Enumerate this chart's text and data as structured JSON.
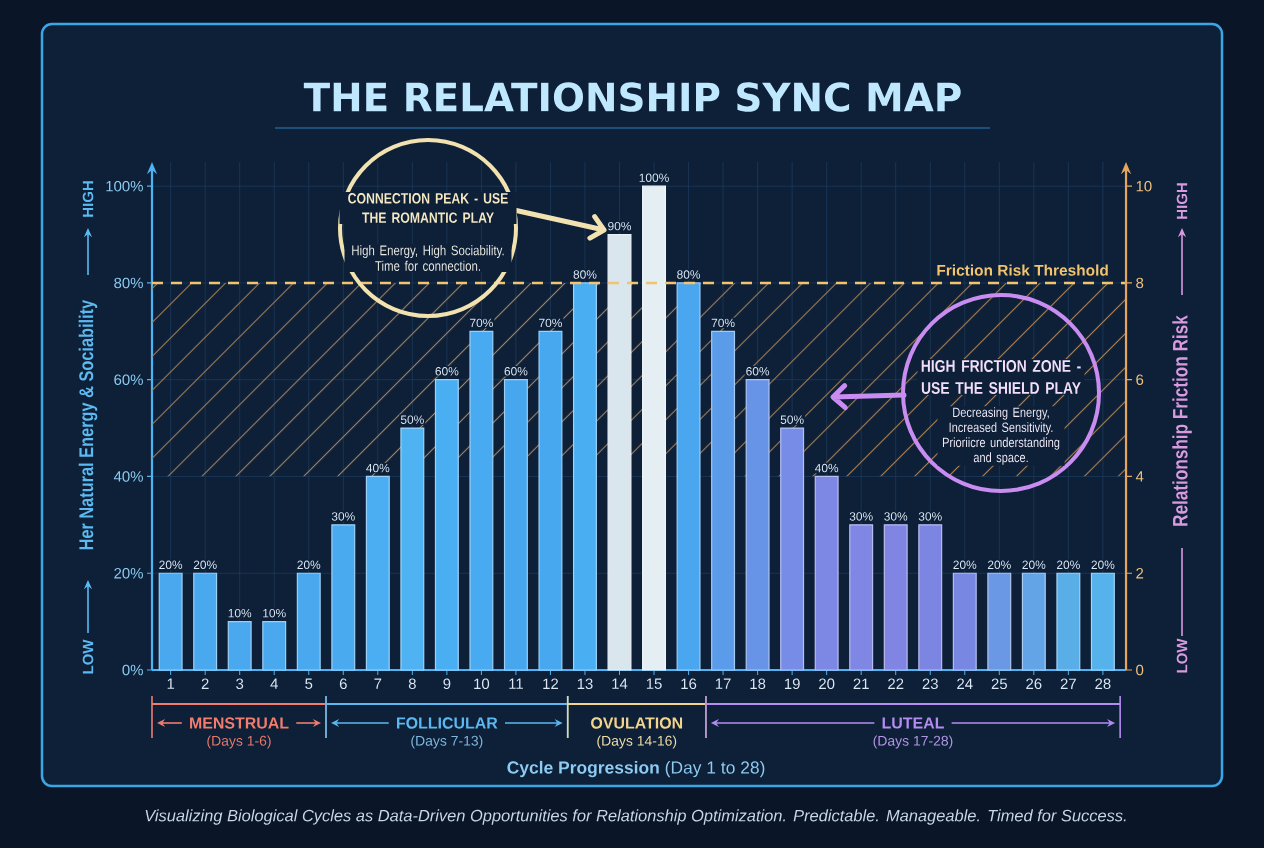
{
  "chart_data": {
    "type": "bar",
    "title": "THE RELATIONSHIP SYNC MAP",
    "xlabel": "**Cycle Progression** (Day 1 to 28)",
    "ylabel": "Her Natural Energy & Sociability",
    "y2label": "Relationship Friction Risk",
    "categories": [
      "1",
      "2",
      "3",
      "4",
      "5",
      "6",
      "7",
      "8",
      "9",
      "10",
      "11",
      "12",
      "13",
      "14",
      "15",
      "16",
      "17",
      "18",
      "19",
      "20",
      "21",
      "22",
      "23",
      "24",
      "25",
      "26",
      "27",
      "28"
    ],
    "values": [
      20,
      20,
      10,
      10,
      20,
      30,
      40,
      50,
      60,
      70,
      60,
      70,
      80,
      90,
      100,
      80,
      70,
      60,
      50,
      40,
      30,
      30,
      30,
      20,
      20,
      20,
      20,
      20
    ],
    "colors": [
      "#4aa8ee",
      "#4aa8ee",
      "#4aa8ee",
      "#4aa8ee",
      "#4aa8ee",
      "#4aaaf0",
      "#4caef2",
      "#4eb2f3",
      "#4aaef2",
      "#48aaf0",
      "#46a6ee",
      "#48a8ef",
      "#4aaef2",
      "#d9e6ee",
      "#e4eef3",
      "#4aa6ee",
      "#5a9cea",
      "#6894e8",
      "#768ce6",
      "#7c88e4",
      "#8086e4",
      "#8084e2",
      "#7c86e2",
      "#7888e2",
      "#6a98e4",
      "#62a4e6",
      "#5aaee8",
      "#56b2ea"
    ],
    "value_labels": [
      "20%",
      "20%",
      "10%",
      "10%",
      "20%",
      "30%",
      "40%",
      "50%",
      "60%",
      "70%",
      "60%",
      "70%",
      "80%",
      "90%",
      "100%",
      "80%",
      "70%",
      "60%",
      "50%",
      "40%",
      "30%",
      "30%",
      "30%",
      "20%",
      "20%",
      "20%",
      "20%",
      "20%"
    ],
    "ylim": [
      0,
      105
    ],
    "yticks": [
      {
        "value": 0,
        "label": "0%"
      },
      {
        "value": 20,
        "label": "20%"
      },
      {
        "value": 40,
        "label": "40%"
      },
      {
        "value": 60,
        "label": "60%"
      },
      {
        "value": 80,
        "label": "80%"
      },
      {
        "value": 100,
        "label": "100%"
      }
    ],
    "y2lim": [
      0,
      10.5
    ],
    "y2ticks": [
      0,
      2,
      4,
      6,
      8,
      10
    ],
    "grid": true,
    "ref_lines": [
      {
        "axis": "y",
        "value": 80,
        "label": "Friction Risk Threshold",
        "color": "#f2c46e",
        "line_style": "dashed"
      }
    ],
    "bands": [
      {
        "axis": "y",
        "from": 40,
        "to": 80,
        "color": "#d8a060"
      }
    ],
    "annotations": [
      "CONNECTION PEAK - USE THE ROMANTIC PLAY",
      "High Energy, High Sociability. Time for connection.",
      "HIGH FRICTION ZONE - USE THE SHIELD PLAY",
      "Decreasing Energy, Increased Sensitivity. Prioriicre understanding and space.",
      "LOW",
      "HIGH",
      "LOW",
      "HIGH",
      "MENSTRUAL",
      "(Days 1-6)",
      "FOLLICULAR",
      "(Days 7-13)",
      "OVULATION",
      "(Days 14-16)",
      "LUTEAL",
      "(Days 17-28)",
      "Visualizing Biological Cycles as Data-Driven Opportunities for Relationship Optimization. Predictable. Manageable. Timed for Success."
    ]
  }
}
